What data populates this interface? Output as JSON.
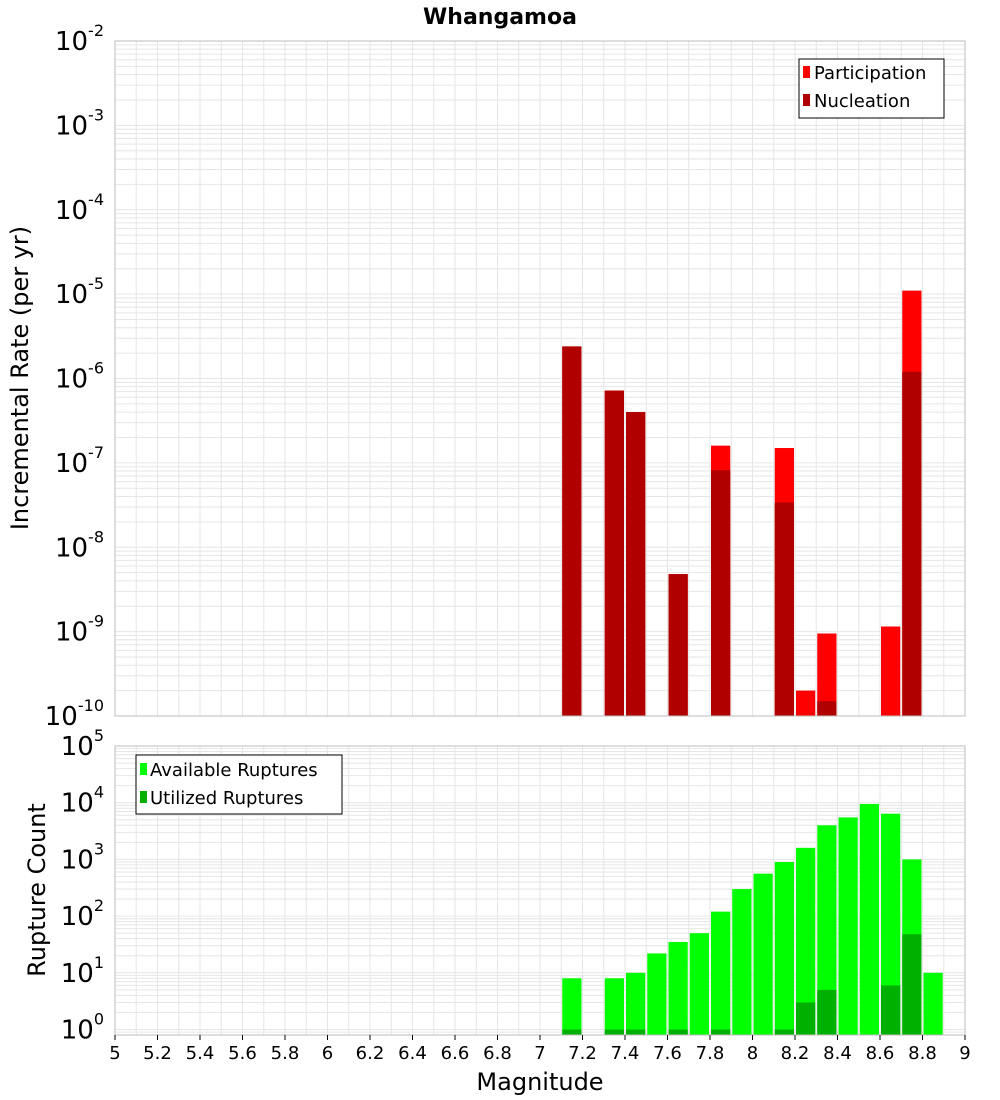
{
  "colors": {
    "participation": "#ff0000",
    "nucleation": "#b10000",
    "available": "#00ff00",
    "utilized": "#00b000",
    "grid": "#e6e6e6",
    "frame": "#bdbdbd"
  },
  "chart_data": [
    {
      "type": "bar",
      "title": "Whangamoa",
      "xlabel": "Magnitude",
      "ylabel": "Incremental Rate (per yr)",
      "xlim": [
        5,
        9
      ],
      "ylim": [
        1e-10,
        0.01
      ],
      "yscale": "log",
      "bin_width": 0.1,
      "grid": true,
      "legend_position": "top-right",
      "y_tick_labels": [
        {
          "base": "10",
          "exp": "-10"
        },
        {
          "base": "10",
          "exp": "-9"
        },
        {
          "base": "10",
          "exp": "-8"
        },
        {
          "base": "10",
          "exp": "-7"
        },
        {
          "base": "10",
          "exp": "-6"
        },
        {
          "base": "10",
          "exp": "-5"
        },
        {
          "base": "10",
          "exp": "-4"
        },
        {
          "base": "10",
          "exp": "-3"
        },
        {
          "base": "10",
          "exp": "-2"
        }
      ],
      "series": [
        {
          "name": "Participation",
          "x": [
            7.15,
            7.35,
            7.45,
            7.65,
            7.85,
            8.15,
            8.25,
            8.35,
            8.65,
            8.75
          ],
          "values": [
            2.4e-06,
            7.2e-07,
            4e-07,
            4.8e-09,
            1.6e-07,
            1.5e-07,
            2e-10,
            9.5e-10,
            1.15e-09,
            1.1e-05
          ]
        },
        {
          "name": "Nucleation",
          "x": [
            7.15,
            7.35,
            7.45,
            7.65,
            7.85,
            8.15,
            8.35,
            8.75
          ],
          "values": [
            2.4e-06,
            7.2e-07,
            4e-07,
            4.8e-09,
            8.2e-08,
            3.4e-08,
            1.5e-10,
            1.2e-06
          ]
        }
      ]
    },
    {
      "type": "bar",
      "title": "",
      "xlabel": "Magnitude",
      "ylabel": "Rupture Count",
      "xlim": [
        5,
        9
      ],
      "ylim": [
        0.8,
        100000.0
      ],
      "yscale": "log",
      "bin_width": 0.1,
      "grid": true,
      "legend_position": "top-left",
      "x_tick_labels": [
        "5",
        "5.2",
        "5.4",
        "5.6",
        "5.8",
        "6",
        "6.2",
        "6.4",
        "6.6",
        "6.8",
        "7",
        "7.2",
        "7.4",
        "7.6",
        "7.8",
        "8",
        "8.2",
        "8.4",
        "8.6",
        "8.8",
        "9"
      ],
      "y_tick_labels": [
        {
          "base": "10",
          "exp": "0"
        },
        {
          "base": "10",
          "exp": "1"
        },
        {
          "base": "10",
          "exp": "2"
        },
        {
          "base": "10",
          "exp": "3"
        },
        {
          "base": "10",
          "exp": "4"
        },
        {
          "base": "10",
          "exp": "5"
        }
      ],
      "series": [
        {
          "name": "Available Ruptures",
          "x": [
            7.15,
            7.35,
            7.45,
            7.55,
            7.65,
            7.75,
            7.85,
            7.95,
            8.05,
            8.15,
            8.25,
            8.35,
            8.45,
            8.55,
            8.65,
            8.75,
            8.85
          ],
          "values": [
            8,
            8,
            10,
            22,
            35,
            50,
            120,
            300,
            560,
            900,
            1600,
            4000,
            5500,
            9500,
            6400,
            1000,
            10
          ]
        },
        {
          "name": "Utilized Ruptures",
          "x": [
            7.15,
            7.35,
            7.45,
            7.65,
            7.85,
            8.15,
            8.25,
            8.35,
            8.65,
            8.75
          ],
          "values": [
            1,
            1,
            1,
            1,
            1,
            1,
            3,
            5,
            6,
            48
          ]
        }
      ]
    }
  ]
}
